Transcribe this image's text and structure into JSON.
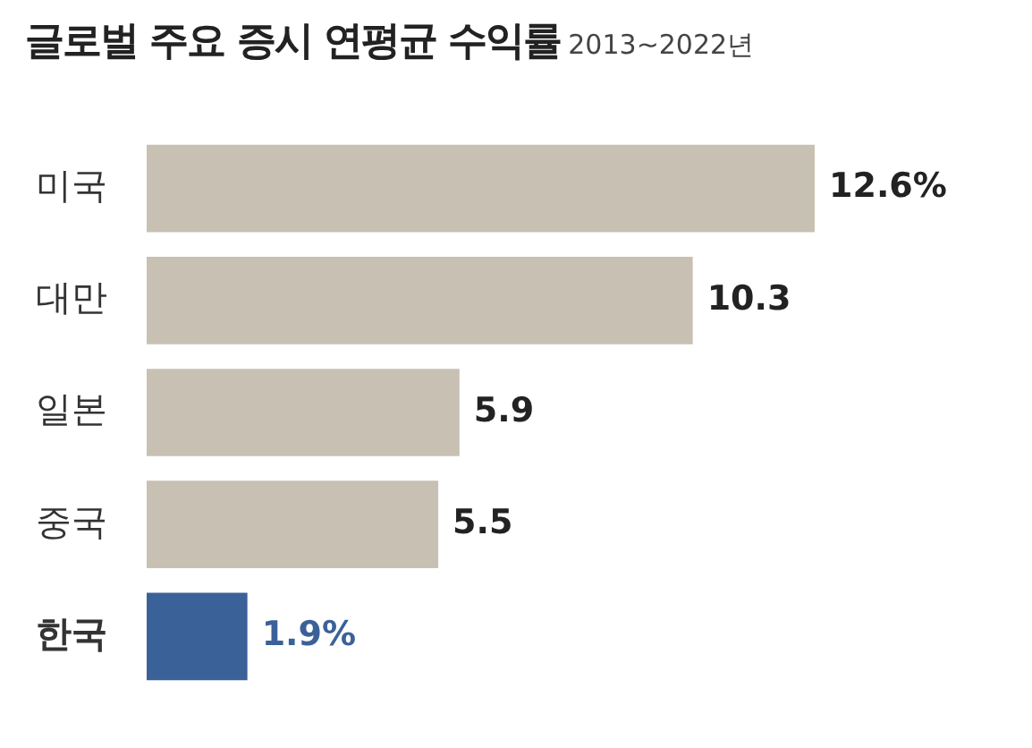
{
  "chart_data": {
    "type": "bar",
    "orientation": "horizontal",
    "title": "글로벌 주요 증시 연평균 수익률",
    "subtitle": "2013~2022년",
    "categories": [
      "미국",
      "대만",
      "일본",
      "중국",
      "한국"
    ],
    "values": [
      12.6,
      10.3,
      5.9,
      5.5,
      1.9
    ],
    "colors": [
      "#c8c1b3",
      "#c8c1b3",
      "#c8c1b3",
      "#c8c1b3",
      "#3b6199"
    ],
    "value_labels": [
      "12.6%",
      "10.3",
      "5.9",
      "5.5",
      "1.9%"
    ],
    "tick_labels": "y"
  }
}
